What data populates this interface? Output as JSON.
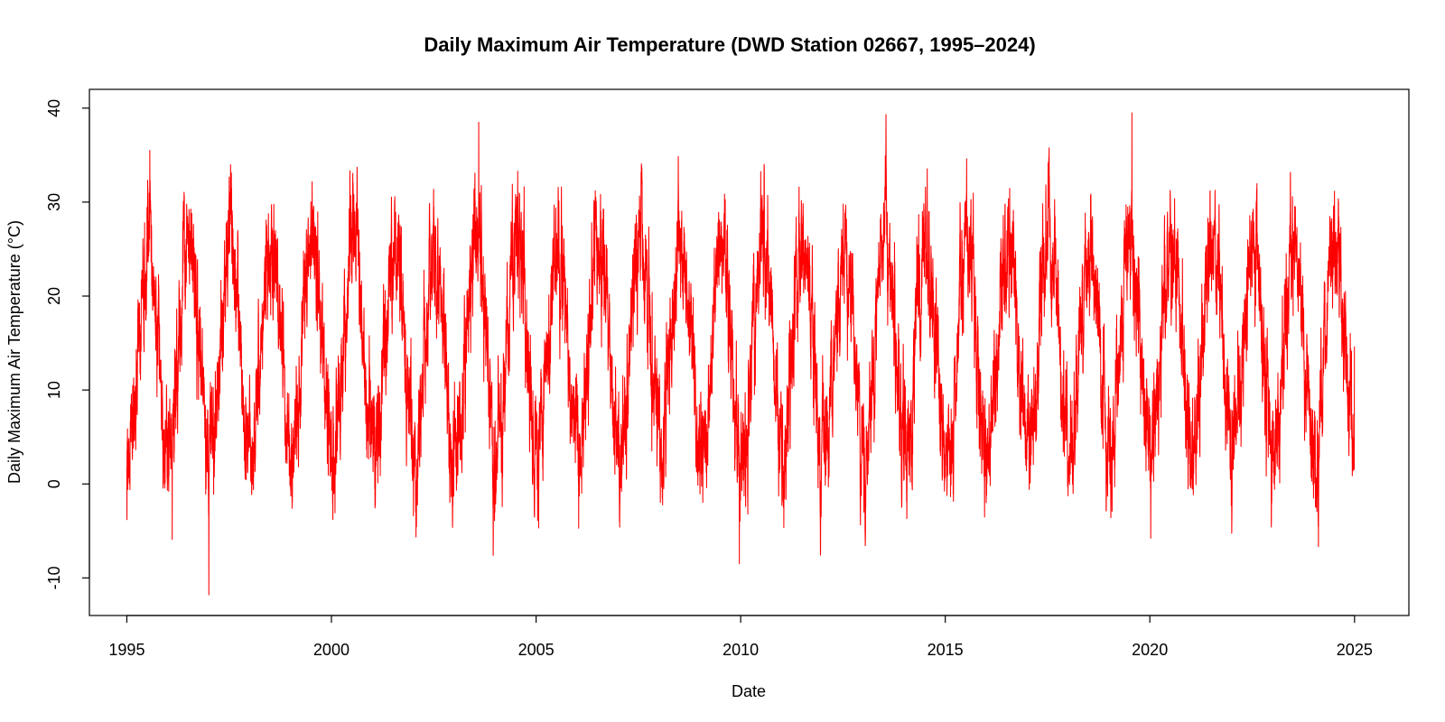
{
  "chart_data": {
    "type": "line",
    "title": "Daily Maximum Air Temperature (DWD Station 02667, 1995–2024)",
    "xlabel": "Date",
    "ylabel": "Daily Maximum Air Temperature (°C)",
    "xlim": [
      "1994-02-01",
      "2026-05-01"
    ],
    "ylim": [
      -14,
      42
    ],
    "x_ticks": [
      {
        "value": "1995-01-01",
        "label": "1995"
      },
      {
        "value": "2000-01-01",
        "label": "2000"
      },
      {
        "value": "2005-01-01",
        "label": "2005"
      },
      {
        "value": "2010-01-01",
        "label": "2010"
      },
      {
        "value": "2015-01-01",
        "label": "2015"
      },
      {
        "value": "2020-01-01",
        "label": "2020"
      },
      {
        "value": "2025-01-01",
        "label": "2025"
      }
    ],
    "y_ticks": [
      {
        "value": -10,
        "label": "-10"
      },
      {
        "value": 0,
        "label": "0"
      },
      {
        "value": 10,
        "label": "10"
      },
      {
        "value": 20,
        "label": "20"
      },
      {
        "value": 30,
        "label": "30"
      },
      {
        "value": 40,
        "label": "40"
      }
    ],
    "grid": false,
    "series": [
      {
        "color": "#ff0000",
        "x_start": "1995-01-01",
        "x_end": "2024-12-31",
        "sampling": "daily",
        "extremes": [
          {
            "x": "1995-01-02",
            "y": -3.8
          },
          {
            "x": "1995-07-25",
            "y": 35.5
          },
          {
            "x": "1996-02-10",
            "y": -5.9
          },
          {
            "x": "1997-01-02",
            "y": -11.9
          },
          {
            "x": "2003-08-08",
            "y": 38.5
          },
          {
            "x": "2009-12-20",
            "y": -8.5
          },
          {
            "x": "2019-07-25",
            "y": 39.6
          },
          {
            "x": "2024-12-31",
            "y": 14.6
          }
        ]
      }
    ]
  }
}
